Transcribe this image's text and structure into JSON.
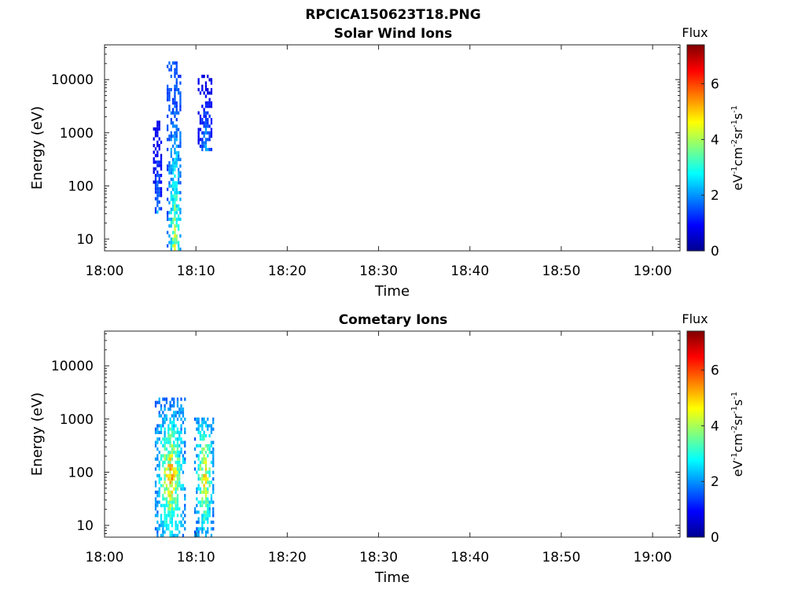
{
  "figure": {
    "title": "RPCICA150623T18.PNG"
  },
  "colormap": "jet",
  "chart_data": [
    {
      "type": "heatmap",
      "title": "Solar Wind Ions",
      "xlabel": "Time",
      "ylabel": "Energy (eV)",
      "y_scale": "log",
      "xlim": [
        "18:00",
        "19:03"
      ],
      "ylim": [
        6,
        45000
      ],
      "x_ticks": [
        "18:00",
        "18:10",
        "18:20",
        "18:30",
        "18:40",
        "18:50",
        "19:00"
      ],
      "y_ticks": [
        "10",
        "100",
        "1000",
        "10000"
      ],
      "colorbar": {
        "label": "Flux",
        "units": "eV-1cm-2sr-1s-1",
        "range": [
          0,
          7.4
        ],
        "ticks": [
          "0",
          "2",
          "4",
          "6"
        ]
      },
      "clusters": [
        {
          "t_start": "18:06.8",
          "t_end": "18:08.4",
          "e_min": 6,
          "e_max": 20000,
          "flux_peak": 4.2
        },
        {
          "t_start": "18:05.3",
          "t_end": "18:06.2",
          "e_min": 30,
          "e_max": 1500,
          "flux_peak": 2.3
        },
        {
          "t_start": "18:10.2",
          "t_end": "18:11.8",
          "e_min": 450,
          "e_max": 11000,
          "flux_peak": 2.2
        }
      ]
    },
    {
      "type": "heatmap",
      "title": "Cometary Ions",
      "xlabel": "Time",
      "ylabel": "Energy (eV)",
      "y_scale": "log",
      "xlim": [
        "18:00",
        "19:03"
      ],
      "ylim": [
        6,
        45000
      ],
      "x_ticks": [
        "18:00",
        "18:10",
        "18:20",
        "18:30",
        "18:40",
        "18:50",
        "19:00"
      ],
      "y_ticks": [
        "10",
        "100",
        "1000",
        "10000"
      ],
      "colorbar": {
        "label": "Flux",
        "units": "eV-1cm-2sr-1s-1",
        "range": [
          0,
          7.4
        ],
        "ticks": [
          "0",
          "2",
          "4",
          "6"
        ]
      },
      "clusters": [
        {
          "t_start": "18:05.5",
          "t_end": "18:08.8",
          "e_min": 6,
          "e_max": 2500,
          "flux_peak": 5.3
        },
        {
          "t_start": "18:09.8",
          "t_end": "18:11.9",
          "e_min": 6,
          "e_max": 1000,
          "flux_peak": 5.0
        }
      ]
    }
  ]
}
